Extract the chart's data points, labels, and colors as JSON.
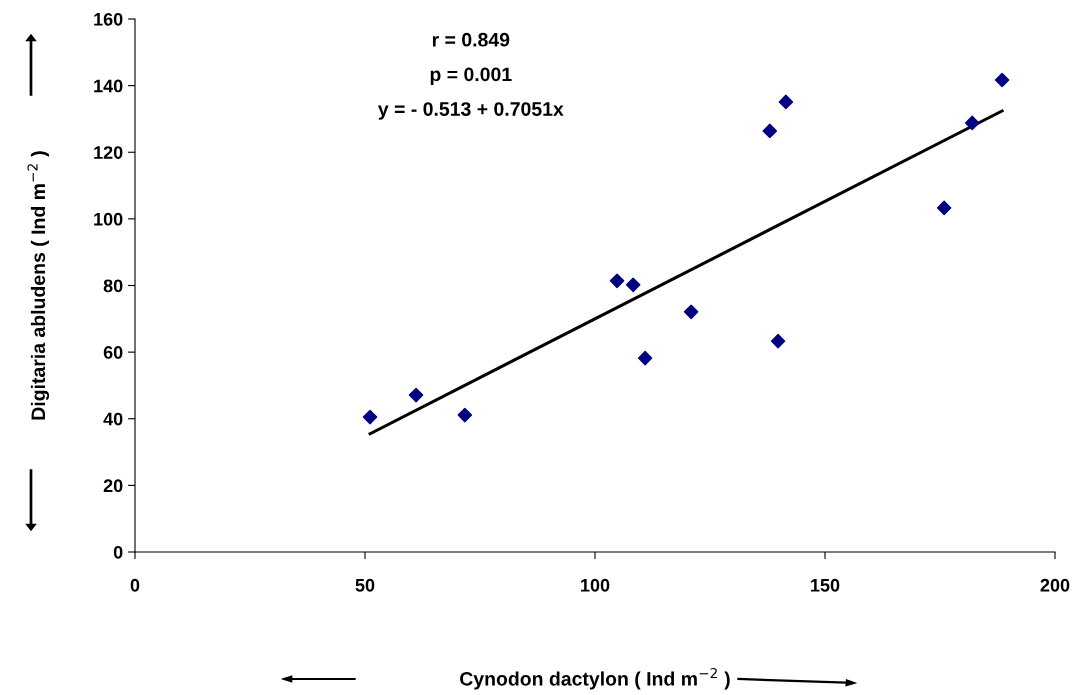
{
  "chart_data": {
    "type": "scatter",
    "xlabel": "Cynodon dactylon ( Ind m$^{−2}$ )",
    "ylabel": "Digitaria abludens ( Ind m$^{−2}$ )",
    "annotations": [
      "r = 0.849",
      "p = 0.001",
      "y = - 0.513 + 0.7051x"
    ],
    "xlim": [
      0,
      200
    ],
    "xticks": [
      0,
      50,
      100,
      150,
      200
    ],
    "ylim": [
      0,
      160
    ],
    "yticks": [
      0,
      20,
      40,
      60,
      80,
      100,
      120,
      140,
      160
    ],
    "grid": false,
    "legend": false,
    "marker": "diamond",
    "series": [
      {
        "color": "#000080",
        "x": [
          51.1,
          61.1,
          71.7,
          104.8,
          108.3,
          110.9,
          120.9,
          138.0,
          141.5,
          139.8,
          175.9,
          182.0,
          188.5
        ],
        "values": [
          40.5,
          47.1,
          41.1,
          81.4,
          80.2,
          58.2,
          72.1,
          126.4,
          135.1,
          63.3,
          103.3,
          128.8,
          141.7
        ]
      },
      {
        "type": "line",
        "color": "#000000",
        "line_style": "solid",
        "marker": "none",
        "x": [
          51.1,
          188.5
        ],
        "values": [
          35.5,
          132.4
        ]
      }
    ]
  }
}
